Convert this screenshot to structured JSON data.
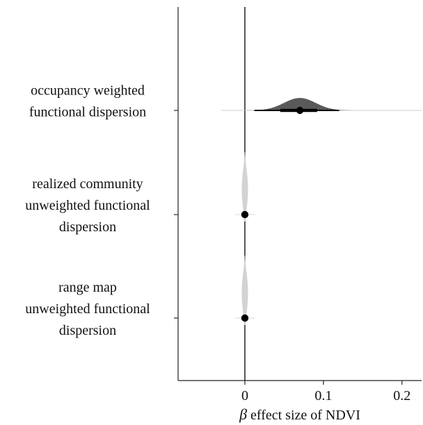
{
  "chart_data": {
    "type": "posterior-halfeye",
    "xlabel_symbol": "β",
    "xlabel_text": " effect size of NDVI",
    "x_ticks": [
      "0",
      "0.1",
      "0.2"
    ],
    "xlim": [
      -0.085,
      0.225
    ],
    "reference_line": 0,
    "categories": [
      {
        "label_lines": [
          "occupancy weighted",
          "functional dispersion"
        ]
      },
      {
        "label_lines": [
          "realized community",
          "unweighted functional",
          "dispersion"
        ]
      },
      {
        "label_lines": [
          "range map",
          "unweighted functional",
          "dispersion"
        ]
      }
    ],
    "series": [
      {
        "category_index": 0,
        "point_estimate": 0.07,
        "interval_66": [
          0.045,
          0.092
        ],
        "interval_95": [
          0.012,
          0.12
        ],
        "tail_range": [
          -0.03,
          0.225
        ],
        "density_sd": 0.02,
        "color": "#5a5a5a"
      },
      {
        "category_index": 1,
        "point_estimate": 0.0,
        "interval_66": [
          -0.0005,
          0.0005
        ],
        "interval_95": [
          -0.001,
          0.001
        ],
        "tail_range": [
          -0.004,
          0.004
        ],
        "density_sd": 0.0008,
        "color": "#d3d3d3"
      },
      {
        "category_index": 2,
        "point_estimate": 0.0,
        "interval_66": [
          -0.0005,
          0.0005
        ],
        "interval_95": [
          -0.001,
          0.001
        ],
        "tail_range": [
          -0.004,
          0.004
        ],
        "density_sd": 0.0008,
        "color": "#d3d3d3"
      }
    ]
  }
}
